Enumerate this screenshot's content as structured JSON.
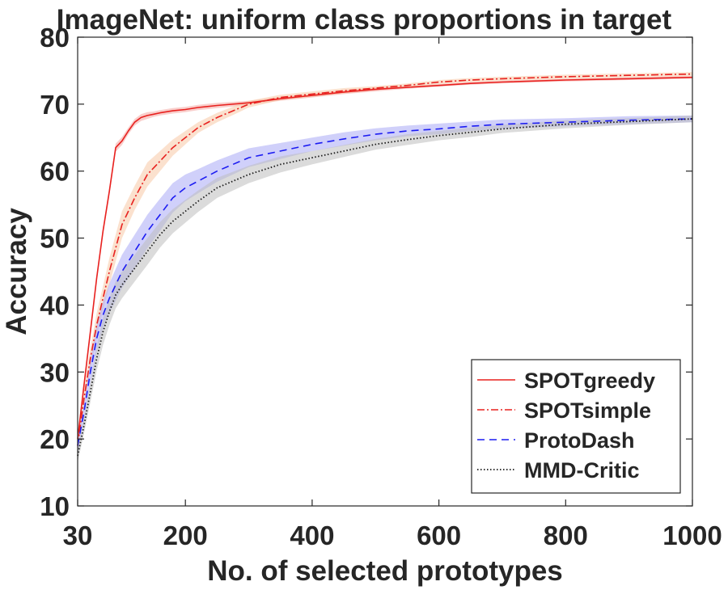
{
  "chart_data": {
    "type": "line",
    "title": "ImageNet: uniform class proportions in target",
    "xlabel": "No. of selected prototypes",
    "ylabel": "Accuracy",
    "xlim": [
      30,
      1000
    ],
    "ylim": [
      10,
      80
    ],
    "xticks": [
      30,
      200,
      400,
      600,
      800,
      1000
    ],
    "xtick_labels": [
      "30",
      "200",
      "400",
      "600",
      "800",
      "1000"
    ],
    "yticks": [
      10,
      20,
      30,
      40,
      50,
      60,
      70,
      80
    ],
    "ytick_labels": [
      "10",
      "20",
      "30",
      "40",
      "50",
      "60",
      "70",
      "80"
    ],
    "grid": false,
    "legend_position": "bottom-right",
    "series": [
      {
        "name": "SPOTgreedy",
        "color": "#e8211f",
        "style": "solid",
        "band_color": "#f4a6a0",
        "x": [
          30,
          40,
          50,
          60,
          70,
          80,
          90,
          100,
          110,
          120,
          130,
          140,
          150,
          160,
          180,
          200,
          220,
          250,
          300,
          350,
          400,
          450,
          500,
          550,
          600,
          650,
          700,
          800,
          900,
          1000
        ],
        "y": [
          20,
          28,
          36,
          44,
          51,
          57,
          63.5,
          64.5,
          66,
          67.3,
          68,
          68.3,
          68.5,
          68.7,
          69,
          69.2,
          69.5,
          69.8,
          70.2,
          70.8,
          71.3,
          71.8,
          72.2,
          72.5,
          72.8,
          73.1,
          73.3,
          73.6,
          73.8,
          74
        ],
        "band": [
          0.6,
          0.6,
          0.6,
          0.6,
          0.6,
          0.6,
          0.6,
          0.6,
          0.5,
          0.5,
          0.5,
          0.5,
          0.4,
          0.4,
          0.4,
          0.4,
          0.4,
          0.4,
          0.3,
          0.3,
          0.3,
          0.3,
          0.3,
          0.2,
          0.2,
          0.2,
          0.2,
          0.2,
          0.2,
          0.2
        ]
      },
      {
        "name": "SPOTsimple",
        "color": "#e8211f",
        "style": "dashdot",
        "band_color": "#f7c9a6",
        "x": [
          30,
          40,
          50,
          60,
          70,
          80,
          90,
          100,
          120,
          140,
          160,
          180,
          200,
          220,
          250,
          280,
          300,
          350,
          400,
          450,
          500,
          550,
          600,
          650,
          700,
          800,
          900,
          1000
        ],
        "y": [
          19,
          26,
          32,
          37,
          41,
          45,
          48.5,
          52,
          56,
          59.5,
          61.5,
          63.5,
          65,
          66.5,
          68,
          69.2,
          70,
          71,
          71.5,
          72,
          72.4,
          72.8,
          73.3,
          73.6,
          73.8,
          74.1,
          74.3,
          74.5
        ],
        "band": [
          1.0,
          1.4,
          1.6,
          1.8,
          1.8,
          2.0,
          2.0,
          2.0,
          1.8,
          1.8,
          1.5,
          1.2,
          1.0,
          0.8,
          0.7,
          0.6,
          0.5,
          0.4,
          0.4,
          0.4,
          0.3,
          0.3,
          0.3,
          0.3,
          0.3,
          0.3,
          0.3,
          0.3
        ]
      },
      {
        "name": "ProtoDash",
        "color": "#1c1cf2",
        "style": "dashed",
        "band_color": "#a9a9f5",
        "x": [
          30,
          40,
          50,
          60,
          70,
          80,
          90,
          100,
          120,
          140,
          160,
          180,
          200,
          220,
          250,
          300,
          350,
          400,
          450,
          500,
          550,
          600,
          650,
          700,
          800,
          900,
          1000
        ],
        "y": [
          19,
          24,
          30,
          35,
          38.5,
          41,
          43,
          45,
          48,
          51,
          53.5,
          56,
          57.5,
          58.5,
          60,
          62,
          63,
          64,
          64.8,
          65.5,
          66,
          66.3,
          66.7,
          67,
          67.3,
          67.6,
          67.8
        ],
        "band": [
          1.2,
          1.5,
          1.8,
          2.0,
          2.0,
          2.2,
          2.4,
          2.5,
          2.5,
          2.5,
          2.4,
          2.2,
          2.0,
          1.8,
          1.6,
          1.4,
          1.2,
          1.0,
          1.0,
          0.9,
          0.8,
          0.8,
          0.7,
          0.7,
          0.6,
          0.6,
          0.5
        ]
      },
      {
        "name": "MMD-Critic",
        "color": "#1a1a1a",
        "style": "dotted",
        "band_color": "#bdbdbd",
        "x": [
          30,
          40,
          50,
          60,
          70,
          80,
          90,
          100,
          120,
          140,
          160,
          180,
          200,
          220,
          250,
          300,
          350,
          400,
          450,
          500,
          550,
          600,
          650,
          700,
          800,
          900,
          1000
        ],
        "y": [
          17.5,
          22,
          27,
          32,
          36,
          39,
          41.5,
          43,
          45.5,
          48,
          50.5,
          52.5,
          54,
          55.5,
          57.5,
          59.5,
          61,
          62,
          63,
          64,
          64.7,
          65.3,
          65.8,
          66.3,
          67,
          67.4,
          67.8
        ],
        "band": [
          1.0,
          1.2,
          1.5,
          1.8,
          2.0,
          2.0,
          2.0,
          2.0,
          2.0,
          2.0,
          1.9,
          1.8,
          1.7,
          1.6,
          1.5,
          1.3,
          1.2,
          1.0,
          0.9,
          0.8,
          0.8,
          0.7,
          0.7,
          0.6,
          0.6,
          0.5,
          0.5
        ]
      }
    ]
  }
}
